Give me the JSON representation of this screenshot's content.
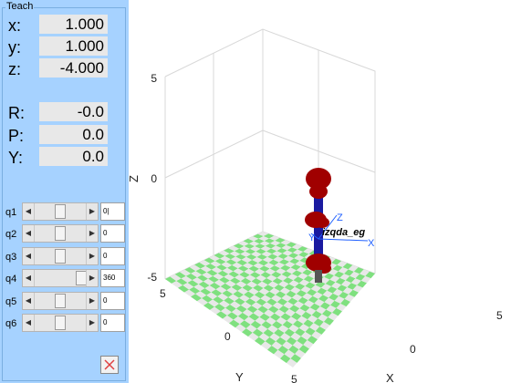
{
  "panel": {
    "title": "Teach",
    "position": [
      {
        "label": "x:",
        "value": "1.000"
      },
      {
        "label": "y:",
        "value": "1.000"
      },
      {
        "label": "z:",
        "value": "-4.000"
      }
    ],
    "orientation": [
      {
        "label": "R:",
        "value": "-0.0"
      },
      {
        "label": "P:",
        "value": "0.0"
      },
      {
        "label": "Y:",
        "value": "0.0"
      }
    ],
    "joints": [
      {
        "label": "q1",
        "value": "0|",
        "level": 0.5
      },
      {
        "label": "q2",
        "value": "0",
        "level": 0.5
      },
      {
        "label": "q3",
        "value": "0",
        "level": 0.5
      },
      {
        "label": "q4",
        "value": "360",
        "level": 1.0
      },
      {
        "label": "q5",
        "value": "0",
        "level": 0.5
      },
      {
        "label": "q6",
        "value": "0",
        "level": 0.5
      }
    ],
    "close_icon": "close-x-icon",
    "close_color": "#e04040"
  },
  "plot": {
    "xlabel": "X",
    "ylabel": "Y",
    "zlabel": "Z",
    "z_ticks": [
      "5",
      "0",
      "-5"
    ],
    "y_ticks": [
      "5",
      "0",
      "5"
    ],
    "x_ticks": [
      "0",
      "5"
    ],
    "robot_name": "izqda_eg",
    "frame_labels": [
      "Z",
      "X",
      "Y"
    ],
    "floor_colors": [
      "#7fe07f",
      "#e8e8e8"
    ],
    "robot_colors": {
      "joint": "#a00000",
      "link": "#1a1aa0"
    }
  }
}
